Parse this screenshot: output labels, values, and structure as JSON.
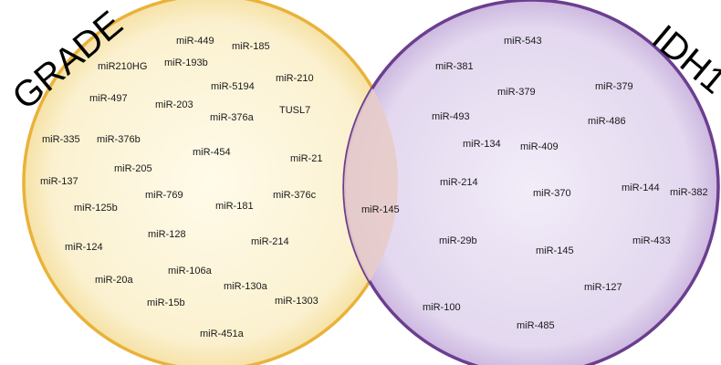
{
  "sets": {
    "left": {
      "title": "GRADE",
      "fill": "#FBF3D6",
      "stroke": "#E9B23A"
    },
    "right": {
      "title": "IDH1",
      "fill": "#E6DCF0",
      "stroke": "#6B3E8F"
    },
    "overlap_fill": "#E9D2D2"
  },
  "left_only": [
    "miR-449",
    "miR-185",
    "miR210HG",
    "miR-193b",
    "miR-210",
    "miR-497",
    "miR-5194",
    "miR-203",
    "TUSL7",
    "miR-376a",
    "miR-335",
    "miR-376b",
    "miR-454",
    "miR-21",
    "miR-205",
    "miR-137",
    "miR-769",
    "miR-376c",
    "miR-125b",
    "miR-181",
    "miR-128",
    "miR-124",
    "miR-214",
    "miR-106a",
    "miR-20a",
    "miR-130a",
    "miR-15b",
    "miR-1303",
    "miR-451a"
  ],
  "overlap": [
    "miR-145"
  ],
  "right_only": [
    "miR-543",
    "miR-381",
    "miR-379",
    "miR-379",
    "miR-493",
    "miR-486",
    "miR-134",
    "miR-409",
    "miR-214",
    "miR-370",
    "miR-144",
    "miR-382",
    "miR-29b",
    "miR-145",
    "miR-433",
    "miR-127",
    "miR-100",
    "miR-485"
  ]
}
